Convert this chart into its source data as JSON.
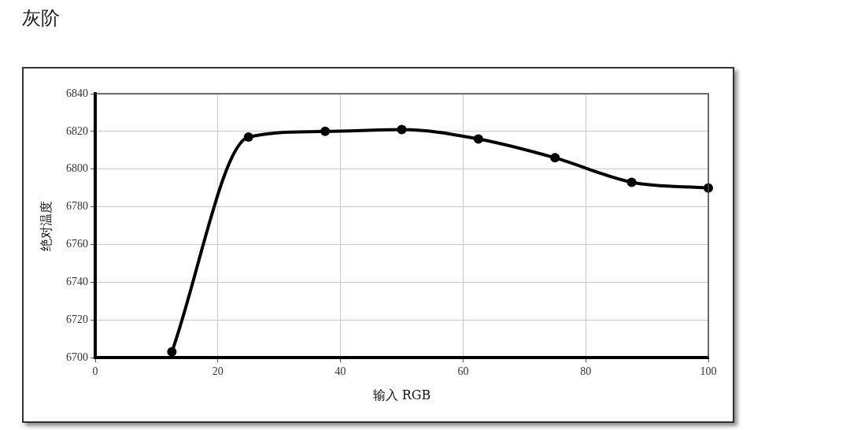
{
  "chart_data": {
    "type": "line",
    "title": "灰阶",
    "xlabel": "输入 RGB",
    "ylabel": "绝对温度",
    "x": [
      12.5,
      25,
      37.5,
      50,
      62.5,
      75,
      87.5,
      100
    ],
    "series": [
      {
        "color": "#000000",
        "values": [
          6703,
          6817,
          6820,
          6821,
          6816,
          6806,
          6793,
          6790
        ]
      }
    ],
    "xlim": [
      0,
      100
    ],
    "xticks": [
      0,
      20,
      40,
      60,
      80,
      100
    ],
    "ylim": [
      6700,
      6840
    ],
    "yticks": [
      6700,
      6720,
      6740,
      6760,
      6780,
      6800,
      6820,
      6840
    ],
    "grid": true,
    "marker": "circle",
    "line_style": "solid"
  }
}
